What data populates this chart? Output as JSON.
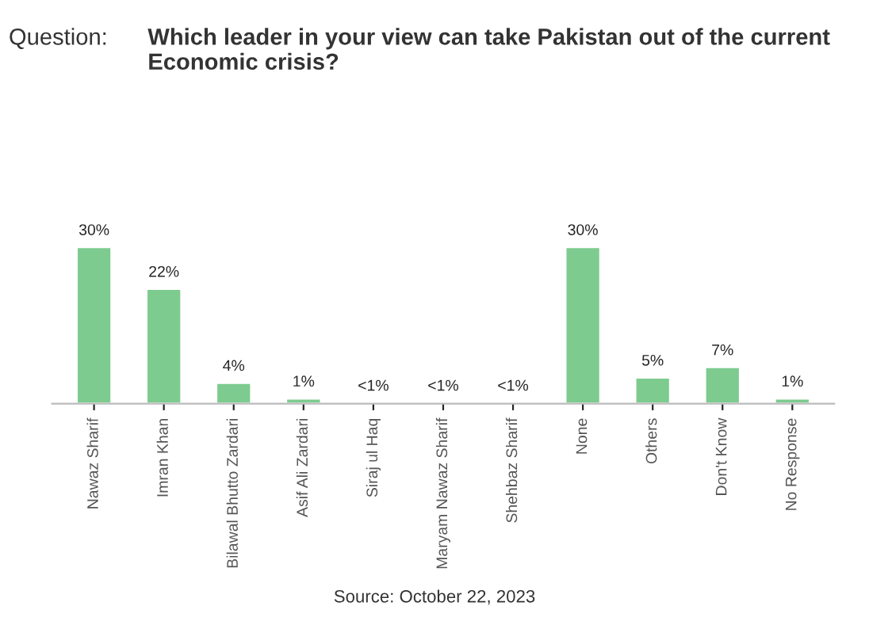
{
  "chart_data": {
    "type": "bar",
    "title": "Which leader in your view can take Pakistan out of the current Economic crisis?",
    "categories": [
      "Nawaz Sharif",
      "Imran Khan",
      "Bilawal Bhutto Zardari",
      "Asif Ali Zardari",
      "Siraj ul Haq",
      "Maryam Nawaz Sharif",
      "Shehbaz Sharif",
      "None",
      "Others",
      "Don't Know",
      "No Response"
    ],
    "values": [
      30,
      22,
      4,
      1,
      0.2,
      0.2,
      0.2,
      30,
      5,
      7,
      1
    ],
    "value_labels": [
      "30%",
      "22%",
      "4%",
      "1%",
      "<1%",
      "<1%",
      "<1%",
      "30%",
      "5%",
      "7%",
      "1%"
    ],
    "color": "#7dcb8f",
    "annotations": [
      "Question:",
      "Source: October 22, 2023"
    ],
    "grid": false,
    "legend": false
  }
}
